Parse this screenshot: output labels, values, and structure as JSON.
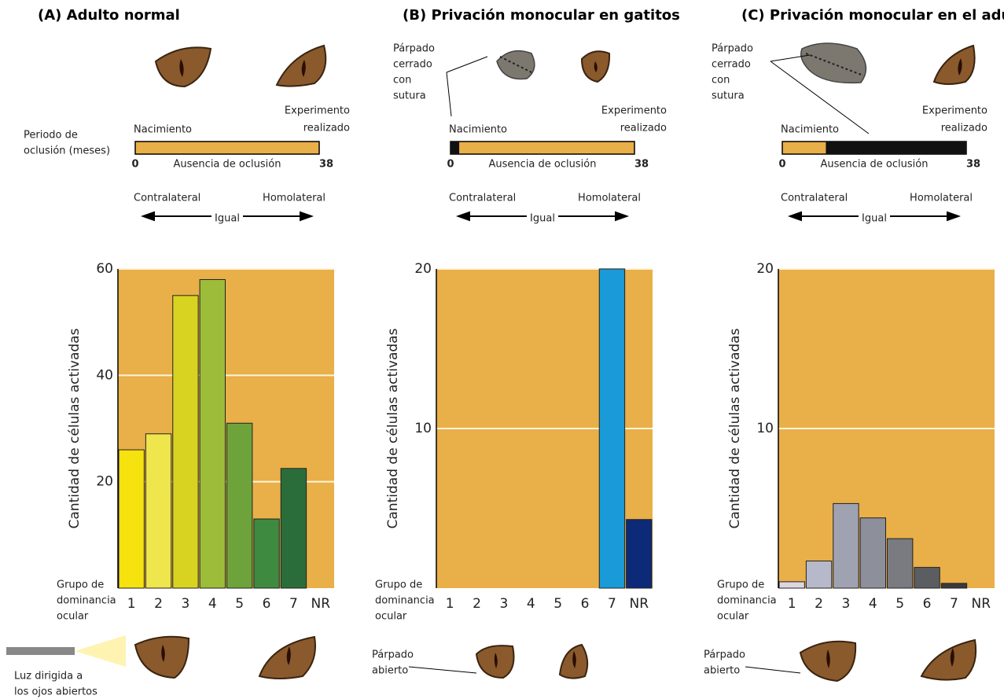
{
  "chart_data": [
    {
      "type": "bar",
      "title": "(A) Adulto normal",
      "y_label": "Cantidad de células activadas",
      "x_label": [
        "Grupo de",
        "dominancia",
        "ocular"
      ],
      "categories": [
        "1",
        "2",
        "3",
        "4",
        "5",
        "6",
        "7",
        "NR"
      ],
      "values": [
        26,
        29,
        55,
        58,
        31,
        13,
        22.5,
        0
      ],
      "colors": [
        "#f6e20e",
        "#efe54c",
        "#d8d321",
        "#9cbc3a",
        "#6ea33c",
        "#3e8a40",
        "#2a6d3b",
        "#2a6d3b"
      ],
      "ylim": [
        0,
        60
      ],
      "yticks": [
        20,
        40,
        60
      ],
      "grid": true,
      "background": "#e9af48",
      "occlusion": {
        "axis_label": [
          "Periodo de",
          "oclusión (meses)"
        ],
        "start_label": "Nacimiento",
        "end_label": [
          "Experimento",
          "realizado"
        ],
        "label": "Ausencia de oclusión",
        "xlim": [
          0,
          38
        ],
        "xticks": [
          0,
          38
        ]
      },
      "eye_labels": {
        "contra": "Contralateral",
        "homo": "Homolateral",
        "equal": "Igual"
      },
      "bottom_note": [
        "Luz dirigida a",
        "los ojos abiertos"
      ]
    },
    {
      "type": "bar",
      "title": "(B) Privación monocular en gatitos",
      "y_label": "Cantidad de células activadas",
      "x_label": [
        "Grupo de",
        "dominancia",
        "ocular"
      ],
      "categories": [
        "1",
        "2",
        "3",
        "4",
        "5",
        "6",
        "7",
        "NR"
      ],
      "values": [
        0,
        0,
        0,
        0,
        0,
        0,
        20,
        4.3
      ],
      "colors": [
        "#1a9ad6",
        "#1a9ad6",
        "#1a9ad6",
        "#1a9ad6",
        "#1a9ad6",
        "#1a9ad6",
        "#1a9ad6",
        "#0d2a78"
      ],
      "ylim": [
        0,
        20
      ],
      "yticks": [
        10,
        20
      ],
      "grid": true,
      "background": "#e9af48",
      "occlusion": {
        "start_label": "Nacimiento",
        "end_label": [
          "Experimento",
          "realizado"
        ],
        "label": "Ausencia de oclusión",
        "xlim": [
          0,
          38
        ],
        "xticks": [
          0,
          38
        ],
        "closed": [
          0,
          1.8
        ]
      },
      "eye_labels": {
        "contra": "Contralateral",
        "homo": "Homolateral",
        "equal": "Igual"
      },
      "top_note": [
        "Párpado",
        "cerrado",
        "con",
        "sutura"
      ],
      "bottom_note": [
        "Párpado",
        "abierto"
      ]
    },
    {
      "type": "bar",
      "title": "(C) Privación monocular en el adulto",
      "y_label": "Cantidad de células activadas",
      "x_label": [
        "Grupo de",
        "dominancia",
        "ocular"
      ],
      "categories": [
        "1",
        "2",
        "3",
        "4",
        "5",
        "6",
        "7",
        "NR"
      ],
      "values": [
        0.4,
        1.7,
        5.3,
        4.4,
        3.1,
        1.3,
        0.3,
        0
      ],
      "colors": [
        "#dcd6e0",
        "#b6b9c9",
        "#9fa2b1",
        "#8d8f9a",
        "#7a7b81",
        "#5c5d61",
        "#3a3a3c",
        "#3a3a3c"
      ],
      "ylim": [
        0,
        20
      ],
      "yticks": [
        10,
        20
      ],
      "grid": true,
      "background": "#e9af48",
      "occlusion": {
        "start_label": "Nacimiento",
        "end_label": [
          "Experimento",
          "realizado"
        ],
        "label": "Ausencia de oclusión",
        "xlim": [
          0,
          38
        ],
        "xticks": [
          0,
          38
        ],
        "closed": [
          9,
          38
        ]
      },
      "eye_labels": {
        "contra": "Contralateral",
        "homo": "Homolateral",
        "equal": "Igual"
      },
      "top_note": [
        "Párpado",
        "cerrado",
        "con",
        "sutura"
      ],
      "bottom_note": [
        "Párpado",
        "abierto"
      ]
    }
  ]
}
